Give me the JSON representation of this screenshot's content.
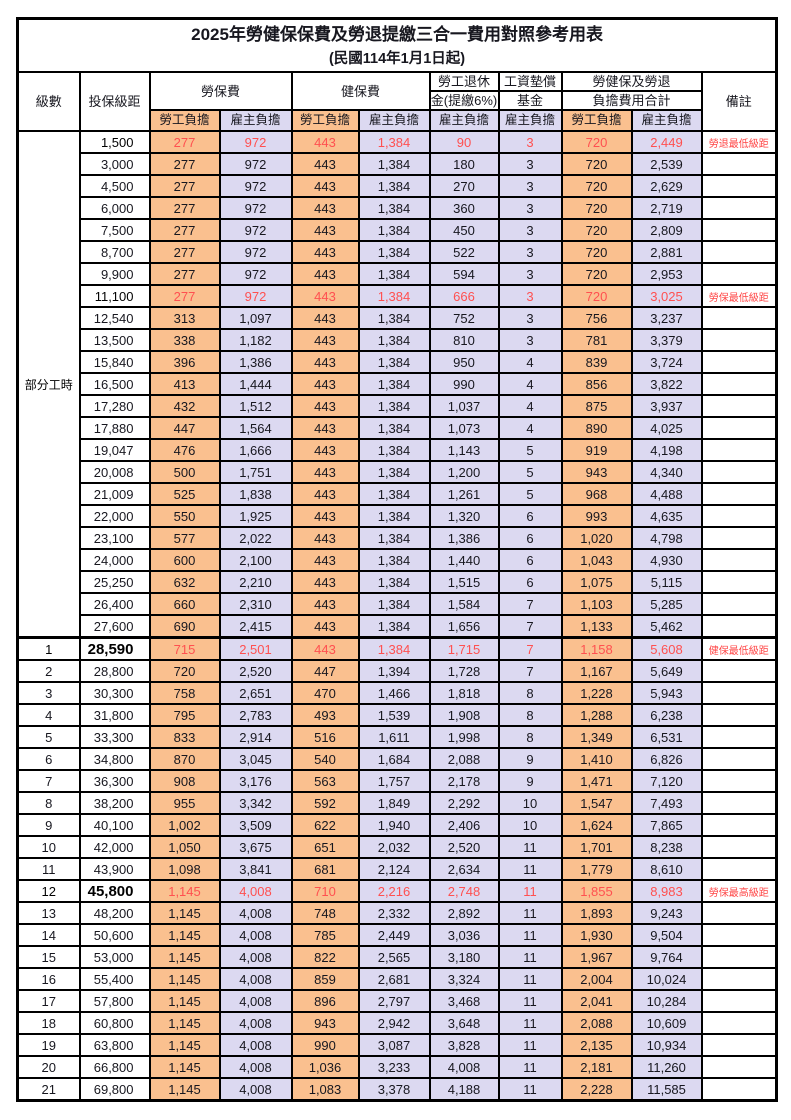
{
  "title": "2025年勞健保保費及勞退提繳三合一費用對照參考用表",
  "subtitle": "(民國114年1月1日起)",
  "header": {
    "level": "級數",
    "bracket": "投保級距",
    "labor_ins": "勞保費",
    "health_ins": "健保費",
    "pension_line1": "勞工退休",
    "pension_line2": "金(提繳6%)",
    "wage_fund_line1": "工資墊償",
    "wage_fund_line2": "基金",
    "total_line1": "勞健保及勞退",
    "total_line2": "負擔費用合計",
    "note": "備註",
    "employee": "勞工負擔",
    "employer": "雇主負擔"
  },
  "part_time_label": "部分工時",
  "colors": {
    "employee_bg": "#fac08f",
    "employer_bg": "#dcd9f1",
    "highlight_text": "#ff5050",
    "border": "#000000"
  },
  "rows": [
    {
      "pt": 23,
      "br": "1,500",
      "v": [
        "277",
        "972",
        "443",
        "1,384",
        "90",
        "3",
        "720",
        "2,449"
      ],
      "note": "勞退最低級距",
      "hl": 1
    },
    {
      "br": "3,000",
      "v": [
        "277",
        "972",
        "443",
        "1,384",
        "180",
        "3",
        "720",
        "2,539"
      ]
    },
    {
      "br": "4,500",
      "v": [
        "277",
        "972",
        "443",
        "1,384",
        "270",
        "3",
        "720",
        "2,629"
      ]
    },
    {
      "br": "6,000",
      "v": [
        "277",
        "972",
        "443",
        "1,384",
        "360",
        "3",
        "720",
        "2,719"
      ]
    },
    {
      "br": "7,500",
      "v": [
        "277",
        "972",
        "443",
        "1,384",
        "450",
        "3",
        "720",
        "2,809"
      ]
    },
    {
      "br": "8,700",
      "v": [
        "277",
        "972",
        "443",
        "1,384",
        "522",
        "3",
        "720",
        "2,881"
      ]
    },
    {
      "br": "9,900",
      "v": [
        "277",
        "972",
        "443",
        "1,384",
        "594",
        "3",
        "720",
        "2,953"
      ]
    },
    {
      "br": "11,100",
      "v": [
        "277",
        "972",
        "443",
        "1,384",
        "666",
        "3",
        "720",
        "3,025"
      ],
      "note": "勞保最低級距",
      "hl": 1
    },
    {
      "br": "12,540",
      "v": [
        "313",
        "1,097",
        "443",
        "1,384",
        "752",
        "3",
        "756",
        "3,237"
      ]
    },
    {
      "br": "13,500",
      "v": [
        "338",
        "1,182",
        "443",
        "1,384",
        "810",
        "3",
        "781",
        "3,379"
      ]
    },
    {
      "br": "15,840",
      "v": [
        "396",
        "1,386",
        "443",
        "1,384",
        "950",
        "4",
        "839",
        "3,724"
      ]
    },
    {
      "br": "16,500",
      "v": [
        "413",
        "1,444",
        "443",
        "1,384",
        "990",
        "4",
        "856",
        "3,822"
      ]
    },
    {
      "br": "17,280",
      "v": [
        "432",
        "1,512",
        "443",
        "1,384",
        "1,037",
        "4",
        "875",
        "3,937"
      ]
    },
    {
      "br": "17,880",
      "v": [
        "447",
        "1,564",
        "443",
        "1,384",
        "1,073",
        "4",
        "890",
        "4,025"
      ]
    },
    {
      "br": "19,047",
      "v": [
        "476",
        "1,666",
        "443",
        "1,384",
        "1,143",
        "5",
        "919",
        "4,198"
      ]
    },
    {
      "br": "20,008",
      "v": [
        "500",
        "1,751",
        "443",
        "1,384",
        "1,200",
        "5",
        "943",
        "4,340"
      ]
    },
    {
      "br": "21,009",
      "v": [
        "525",
        "1,838",
        "443",
        "1,384",
        "1,261",
        "5",
        "968",
        "4,488"
      ]
    },
    {
      "br": "22,000",
      "v": [
        "550",
        "1,925",
        "443",
        "1,384",
        "1,320",
        "6",
        "993",
        "4,635"
      ]
    },
    {
      "br": "23,100",
      "v": [
        "577",
        "2,022",
        "443",
        "1,384",
        "1,386",
        "6",
        "1,020",
        "4,798"
      ]
    },
    {
      "br": "24,000",
      "v": [
        "600",
        "2,100",
        "443",
        "1,384",
        "1,440",
        "6",
        "1,043",
        "4,930"
      ]
    },
    {
      "br": "25,250",
      "v": [
        "632",
        "2,210",
        "443",
        "1,384",
        "1,515",
        "6",
        "1,075",
        "5,115"
      ]
    },
    {
      "br": "26,400",
      "v": [
        "660",
        "2,310",
        "443",
        "1,384",
        "1,584",
        "7",
        "1,103",
        "5,285"
      ]
    },
    {
      "br": "27,600",
      "v": [
        "690",
        "2,415",
        "443",
        "1,384",
        "1,656",
        "7",
        "1,133",
        "5,462"
      ]
    },
    {
      "lv": "1",
      "br": "28,590",
      "v": [
        "715",
        "2,501",
        "443",
        "1,384",
        "1,715",
        "7",
        "1,158",
        "5,608"
      ],
      "note": "健保最低級距",
      "hl": 1,
      "big": 1,
      "sep": 1
    },
    {
      "lv": "2",
      "br": "28,800",
      "v": [
        "720",
        "2,520",
        "447",
        "1,394",
        "1,728",
        "7",
        "1,167",
        "5,649"
      ]
    },
    {
      "lv": "3",
      "br": "30,300",
      "v": [
        "758",
        "2,651",
        "470",
        "1,466",
        "1,818",
        "8",
        "1,228",
        "5,943"
      ]
    },
    {
      "lv": "4",
      "br": "31,800",
      "v": [
        "795",
        "2,783",
        "493",
        "1,539",
        "1,908",
        "8",
        "1,288",
        "6,238"
      ]
    },
    {
      "lv": "5",
      "br": "33,300",
      "v": [
        "833",
        "2,914",
        "516",
        "1,611",
        "1,998",
        "8",
        "1,349",
        "6,531"
      ]
    },
    {
      "lv": "6",
      "br": "34,800",
      "v": [
        "870",
        "3,045",
        "540",
        "1,684",
        "2,088",
        "9",
        "1,410",
        "6,826"
      ]
    },
    {
      "lv": "7",
      "br": "36,300",
      "v": [
        "908",
        "3,176",
        "563",
        "1,757",
        "2,178",
        "9",
        "1,471",
        "7,120"
      ]
    },
    {
      "lv": "8",
      "br": "38,200",
      "v": [
        "955",
        "3,342",
        "592",
        "1,849",
        "2,292",
        "10",
        "1,547",
        "7,493"
      ]
    },
    {
      "lv": "9",
      "br": "40,100",
      "v": [
        "1,002",
        "3,509",
        "622",
        "1,940",
        "2,406",
        "10",
        "1,624",
        "7,865"
      ]
    },
    {
      "lv": "10",
      "br": "42,000",
      "v": [
        "1,050",
        "3,675",
        "651",
        "2,032",
        "2,520",
        "11",
        "1,701",
        "8,238"
      ]
    },
    {
      "lv": "11",
      "br": "43,900",
      "v": [
        "1,098",
        "3,841",
        "681",
        "2,124",
        "2,634",
        "11",
        "1,779",
        "8,610"
      ]
    },
    {
      "lv": "12",
      "br": "45,800",
      "v": [
        "1,145",
        "4,008",
        "710",
        "2,216",
        "2,748",
        "11",
        "1,855",
        "8,983"
      ],
      "note": "勞保最高級距",
      "hl": 1,
      "big": 1
    },
    {
      "lv": "13",
      "br": "48,200",
      "v": [
        "1,145",
        "4,008",
        "748",
        "2,332",
        "2,892",
        "11",
        "1,893",
        "9,243"
      ]
    },
    {
      "lv": "14",
      "br": "50,600",
      "v": [
        "1,145",
        "4,008",
        "785",
        "2,449",
        "3,036",
        "11",
        "1,930",
        "9,504"
      ]
    },
    {
      "lv": "15",
      "br": "53,000",
      "v": [
        "1,145",
        "4,008",
        "822",
        "2,565",
        "3,180",
        "11",
        "1,967",
        "9,764"
      ]
    },
    {
      "lv": "16",
      "br": "55,400",
      "v": [
        "1,145",
        "4,008",
        "859",
        "2,681",
        "3,324",
        "11",
        "2,004",
        "10,024"
      ]
    },
    {
      "lv": "17",
      "br": "57,800",
      "v": [
        "1,145",
        "4,008",
        "896",
        "2,797",
        "3,468",
        "11",
        "2,041",
        "10,284"
      ]
    },
    {
      "lv": "18",
      "br": "60,800",
      "v": [
        "1,145",
        "4,008",
        "943",
        "2,942",
        "3,648",
        "11",
        "2,088",
        "10,609"
      ]
    },
    {
      "lv": "19",
      "br": "63,800",
      "v": [
        "1,145",
        "4,008",
        "990",
        "3,087",
        "3,828",
        "11",
        "2,135",
        "10,934"
      ]
    },
    {
      "lv": "20",
      "br": "66,800",
      "v": [
        "1,145",
        "4,008",
        "1,036",
        "3,233",
        "4,008",
        "11",
        "2,181",
        "11,260"
      ]
    },
    {
      "lv": "21",
      "br": "69,800",
      "v": [
        "1,145",
        "4,008",
        "1,083",
        "3,378",
        "4,188",
        "11",
        "2,228",
        "11,585"
      ]
    }
  ]
}
